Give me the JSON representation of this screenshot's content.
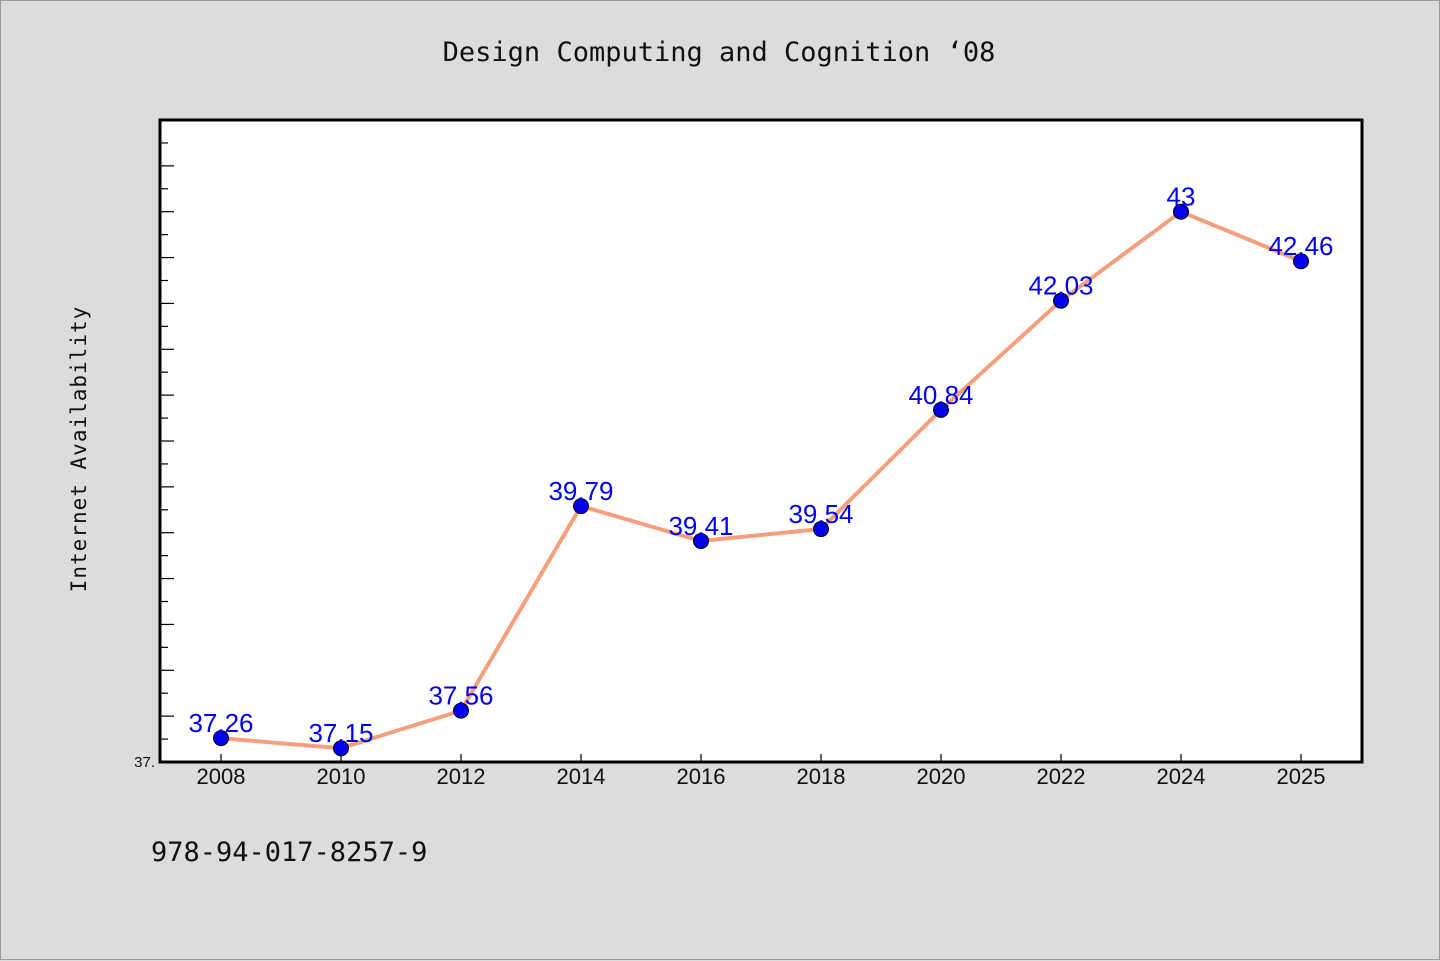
{
  "chart_data": {
    "type": "line",
    "title": "Design Computing and Cognition  ‘08",
    "ylabel": "Internet Availability",
    "xlabel": "",
    "categories": [
      "2008",
      "2010",
      "2012",
      "2014",
      "2016",
      "2018",
      "2020",
      "2022",
      "2024",
      "2025"
    ],
    "values": [
      37.26,
      37.15,
      37.56,
      39.79,
      39.41,
      39.54,
      40.84,
      42.03,
      43,
      42.46
    ],
    "data_labels": [
      "37.26",
      "37.15",
      "37.56",
      "39.79",
      "39.41",
      "39.54",
      "40.84",
      "42.03",
      "43",
      "42.46"
    ],
    "y_min_label": "37.",
    "ylim": [
      37,
      44
    ],
    "grid": false,
    "line_color": "#f4a07f",
    "marker_color": "#0000ee",
    "label_color": "#0000ee"
  },
  "footer": {
    "code": "978-94-017-8257-9"
  }
}
